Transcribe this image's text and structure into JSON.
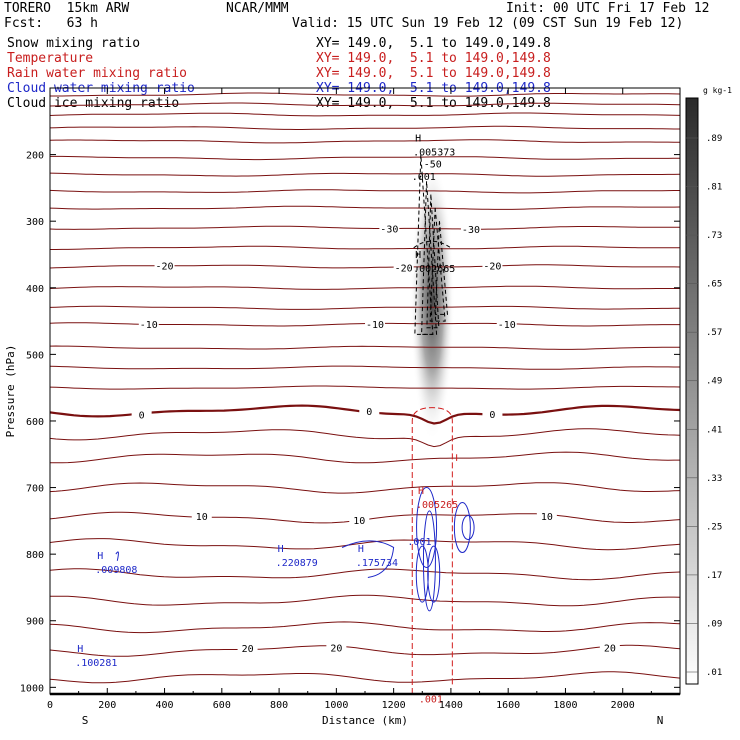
{
  "header": {
    "model": "TORERO  15km ARW",
    "center": "NCAR/MMM",
    "init": "Init: 00 UTC Fri 17 Feb 12",
    "fcst": "Fcst:   63 h",
    "valid": "Valid: 15 UTC Sun 19 Feb 12 (09 CST Sun 19 Feb 12)"
  },
  "legend": [
    {
      "name": "Snow mixing ratio",
      "xy": "XY= 149.0,  5.1 to 149.0,149.8",
      "color": "#000000"
    },
    {
      "name": "Temperature",
      "xy": "XY= 149.0,  5.1 to 149.0,149.8",
      "color": "#c81e1e"
    },
    {
      "name": "Rain water mixing ratio",
      "xy": "XY= 149.0,  5.1 to 149.0,149.8",
      "color": "#c81e1e"
    },
    {
      "name": "Cloud water mixing ratio",
      "xy": "XY= 149.0,  5.1 to 149.0,149.8",
      "color": "#1e28c8"
    },
    {
      "name": "Cloud ice mixing ratio",
      "xy": "XY= 149.0,  5.1 to 149.0,149.8",
      "color": "#000000"
    }
  ],
  "chart_data": {
    "type": "cross-section",
    "xlabel": "Distance (km)",
    "ylabel": "Pressure (hPa)",
    "xlim": [
      0,
      2200
    ],
    "ylim": [
      1010,
      100
    ],
    "x_ticks": [
      0,
      200,
      400,
      600,
      800,
      1000,
      1200,
      1400,
      1600,
      1800,
      2000
    ],
    "y_ticks": [
      200,
      300,
      400,
      500,
      600,
      700,
      800,
      900,
      1000
    ],
    "x_end_labels": {
      "left": "S",
      "right": "N"
    },
    "temperature_isotherms": [
      {
        "p": 110
      },
      {
        "p": 125
      },
      {
        "p": 140
      },
      {
        "p": 160
      },
      {
        "p": 180
      },
      {
        "p": 205
      },
      {
        "p": 230
      },
      {
        "p": 255
      },
      {
        "p": 280
      },
      {
        "p": 310,
        "label": "-30",
        "label_x": [
          1185,
          1470
        ]
      },
      {
        "p": 340
      },
      {
        "p": 368,
        "label": "-20",
        "label_x": [
          400,
          1235,
          1545
        ]
      },
      {
        "p": 400
      },
      {
        "p": 430
      },
      {
        "p": 455,
        "label": "-10",
        "label_x": [
          345,
          1135,
          1595
        ]
      },
      {
        "p": 490
      },
      {
        "p": 520
      },
      {
        "p": 550
      },
      {
        "p": 585,
        "label": "0",
        "label_x": [
          320,
          1115,
          1545
        ],
        "bold": true
      },
      {
        "p": 620
      },
      {
        "p": 655
      },
      {
        "p": 700
      },
      {
        "p": 745,
        "label": "10",
        "label_x": [
          530,
          1080,
          1735
        ]
      },
      {
        "p": 785
      },
      {
        "p": 830
      },
      {
        "p": 870
      },
      {
        "p": 910
      },
      {
        "p": 945,
        "label": "20",
        "label_x": [
          690,
          1000,
          1955
        ]
      },
      {
        "p": 985
      }
    ],
    "snow_maxima": [
      {
        "x": 1310,
        "p": 195,
        "label": ".005373",
        "h": true
      },
      {
        "x": 1305,
        "p": 232,
        "label": ".001",
        "h": false
      },
      {
        "x": 1310,
        "p": 370,
        "label": ".002665",
        "h": true
      }
    ],
    "snow_contour_labels": [
      {
        "x": 1305,
        "p": 213,
        "label": "-50"
      }
    ],
    "rain_maxima": [
      {
        "x": 1320,
        "p": 725,
        "label": ".005265",
        "h": true
      },
      {
        "x": 1330,
        "p": 1017,
        "label": ".001",
        "h": false
      }
    ],
    "cloud_water_maxima": [
      {
        "x": 200,
        "p": 822,
        "label": ".009808",
        "h": true
      },
      {
        "x": 830,
        "p": 812,
        "label": ".220879",
        "h": true
      },
      {
        "x": 1110,
        "p": 812,
        "label": ".175734",
        "h": true
      },
      {
        "x": 1290,
        "p": 780,
        "label": ".001",
        "h": false
      },
      {
        "x": 130,
        "p": 962,
        "label": ".100281",
        "h": true
      }
    ],
    "shading_colorbar": {
      "unit": "g kg-1",
      "ticks": [
        ".89",
        ".81",
        ".73",
        ".65",
        ".57",
        ".49",
        ".41",
        ".33",
        ".25",
        ".17",
        ".09",
        ".01"
      ]
    }
  }
}
